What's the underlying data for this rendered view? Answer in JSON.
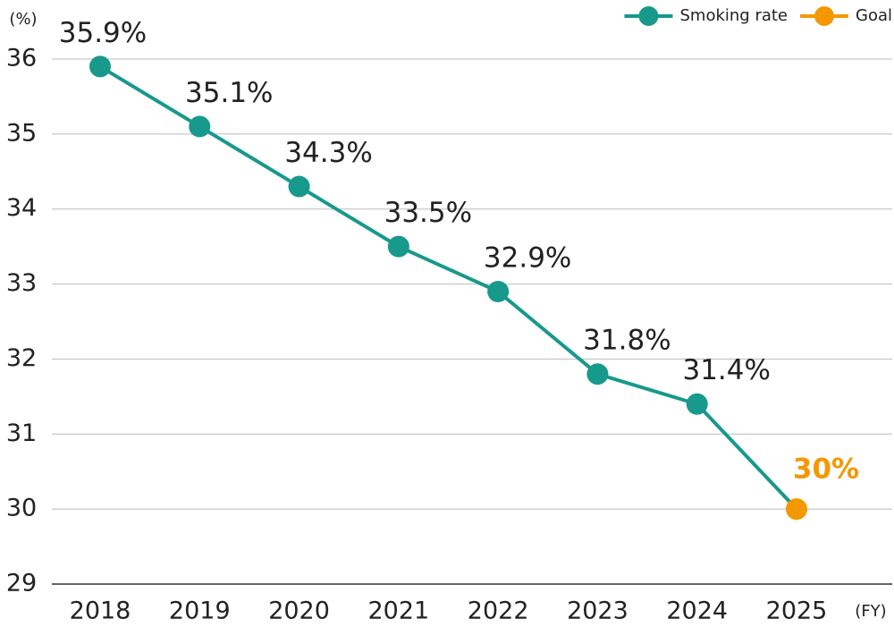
{
  "chart_data": {
    "type": "line",
    "y_label": "(%)",
    "x_label": "(FY)",
    "categories": [
      "2018",
      "2019",
      "2020",
      "2021",
      "2022",
      "2023",
      "2024",
      "2025"
    ],
    "series": [
      {
        "name": "Smoking rate",
        "color": "#17998c",
        "values": [
          35.9,
          35.1,
          34.3,
          33.5,
          32.9,
          31.8,
          31.4,
          null
        ],
        "value_labels": [
          "35.9%",
          "35.1%",
          "34.3%",
          "33.5%",
          "32.9%",
          "31.8%",
          "31.4%",
          null
        ]
      },
      {
        "name": "Goal",
        "color": "#f39800",
        "values": [
          null,
          null,
          null,
          null,
          null,
          null,
          null,
          30
        ],
        "value_labels": [
          null,
          null,
          null,
          null,
          null,
          null,
          null,
          "30%"
        ]
      }
    ],
    "ylim": [
      29,
      36
    ],
    "yticks": [
      29,
      30,
      31,
      32,
      33,
      34,
      35,
      36
    ],
    "grid": true
  }
}
